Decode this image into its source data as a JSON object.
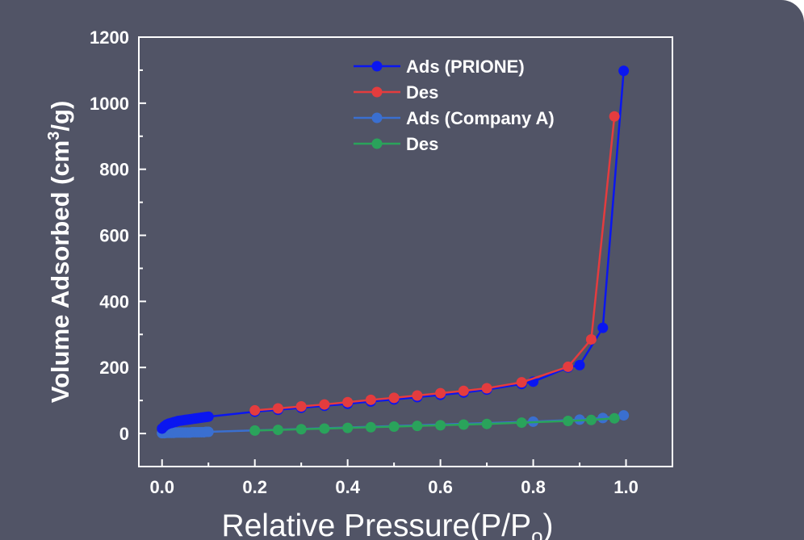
{
  "chart_data": {
    "type": "line",
    "xlabel": "Relative Pressure(P/P",
    "xlabel_sub": "o",
    "xlabel_close": ")",
    "ylabel_pre": "Volume Adsorbed (cm",
    "ylabel_sup": "3",
    "ylabel_post": "/g)",
    "xlim": [
      -0.05,
      1.1
    ],
    "ylim": [
      -100,
      1200
    ],
    "xticks": [
      0.0,
      0.2,
      0.4,
      0.6,
      0.8,
      1.0
    ],
    "xtick_labels": [
      "0.0",
      "0.2",
      "0.4",
      "0.6",
      "0.8",
      "1.0"
    ],
    "yticks": [
      0,
      200,
      400,
      600,
      800,
      1000,
      1200
    ],
    "ytick_labels": [
      "0",
      "200",
      "400",
      "600",
      "800",
      "1000",
      "1200"
    ],
    "legend_position": "top-right",
    "colors": {
      "background": "#515466",
      "axes_background": "#515466",
      "axes": "#ffffff",
      "text": "#ffffff"
    },
    "series": [
      {
        "name": "Ads (PRIONE)",
        "color": "#0a16f0",
        "x": [
          0.0,
          0.005,
          0.01,
          0.015,
          0.02,
          0.025,
          0.03,
          0.035,
          0.04,
          0.045,
          0.05,
          0.055,
          0.06,
          0.065,
          0.07,
          0.075,
          0.08,
          0.085,
          0.09,
          0.095,
          0.1,
          0.2,
          0.25,
          0.3,
          0.35,
          0.4,
          0.45,
          0.5,
          0.55,
          0.6,
          0.65,
          0.7,
          0.775,
          0.8,
          0.875,
          0.9,
          0.95,
          0.995
        ],
        "y": [
          15,
          22,
          27,
          30,
          32,
          34,
          36,
          38,
          39,
          40,
          41,
          42,
          43,
          44,
          45,
          46,
          47,
          48,
          49,
          50,
          51,
          66,
          72,
          78,
          84,
          90,
          97,
          103,
          110,
          117,
          124,
          133,
          150,
          157,
          200,
          207,
          320,
          1098
        ]
      },
      {
        "name": "Des",
        "color": "#e43c3e",
        "x": [
          0.2,
          0.25,
          0.3,
          0.35,
          0.4,
          0.45,
          0.5,
          0.55,
          0.6,
          0.65,
          0.7,
          0.775,
          0.875,
          0.925,
          0.975
        ],
        "y": [
          70,
          76,
          82,
          88,
          95,
          102,
          108,
          115,
          122,
          129,
          137,
          155,
          202,
          285,
          960
        ]
      },
      {
        "name": "Ads (Company A)",
        "color": "#3a6fd0",
        "x": [
          0.0,
          0.005,
          0.01,
          0.015,
          0.02,
          0.025,
          0.03,
          0.035,
          0.04,
          0.045,
          0.05,
          0.055,
          0.06,
          0.065,
          0.07,
          0.075,
          0.08,
          0.085,
          0.09,
          0.095,
          0.1,
          0.8,
          0.9,
          0.95,
          0.995
        ],
        "y": [
          1,
          1,
          2,
          2,
          2,
          2,
          3,
          3,
          3,
          3,
          3,
          3,
          3,
          4,
          4,
          4,
          4,
          4,
          4,
          5,
          5,
          36,
          42,
          47,
          55
        ]
      },
      {
        "name": "Des",
        "color": "#2aa35b",
        "x": [
          0.2,
          0.25,
          0.3,
          0.35,
          0.4,
          0.45,
          0.5,
          0.55,
          0.6,
          0.65,
          0.7,
          0.775,
          0.875,
          0.925,
          0.975
        ],
        "y": [
          9,
          11,
          13,
          15,
          17,
          19,
          21,
          23,
          25,
          27,
          29,
          33,
          38,
          41,
          46
        ]
      }
    ]
  }
}
